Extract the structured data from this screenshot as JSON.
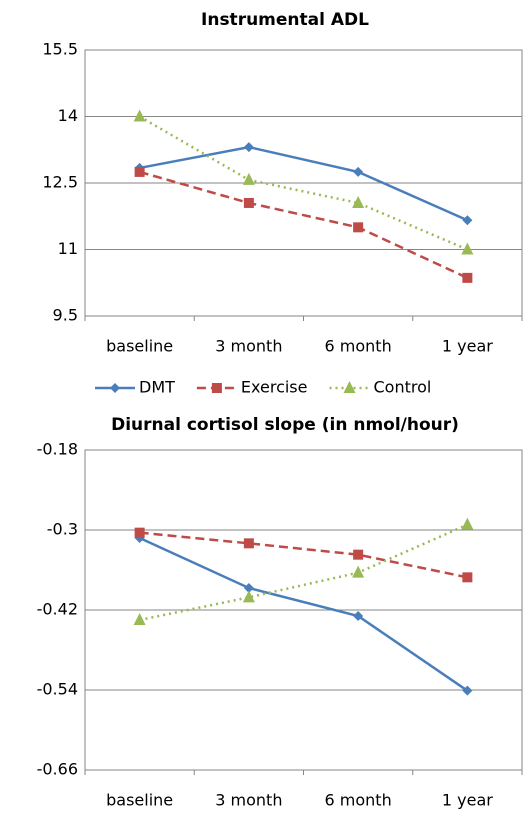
{
  "chart_data": [
    {
      "type": "line",
      "title": "Instrumental ADL",
      "categories": [
        "baseline",
        "3 month",
        "6 month",
        "1 year"
      ],
      "series": [
        {
          "name": "DMT",
          "color": "#4a7ebb",
          "marker": "diamond",
          "line_style": "solid",
          "values": [
            12.84,
            13.31,
            12.75,
            11.66
          ]
        },
        {
          "name": "Exercise",
          "color": "#be4b48",
          "marker": "square",
          "line_style": "dashed",
          "values": [
            12.75,
            12.05,
            11.5,
            10.36
          ]
        },
        {
          "name": "Control",
          "color": "#98b954",
          "marker": "triangle",
          "line_style": "dotted",
          "values": [
            14.0,
            12.57,
            12.05,
            11.0
          ]
        }
      ],
      "ylim": [
        9.5,
        15.5
      ],
      "yticks": [
        9.5,
        11,
        12.5,
        14,
        15.5
      ],
      "grid": true,
      "legend": "bottom"
    },
    {
      "type": "line",
      "title": "Diurnal cortisol slope (in nmol/hour)",
      "categories": [
        "baseline",
        "3 month",
        "6 month",
        "1 year"
      ],
      "series": [
        {
          "name": "DMT",
          "color": "#4a7ebb",
          "marker": "diamond",
          "line_style": "solid",
          "values": [
            -0.312,
            -0.387,
            -0.429,
            -0.541
          ]
        },
        {
          "name": "Exercise",
          "color": "#be4b48",
          "marker": "square",
          "line_style": "dashed",
          "values": [
            -0.304,
            -0.32,
            -0.337,
            -0.371
          ]
        },
        {
          "name": "Control",
          "color": "#98b954",
          "marker": "triangle",
          "line_style": "dotted",
          "values": [
            -0.435,
            -0.401,
            -0.364,
            -0.292
          ]
        }
      ],
      "ylim": [
        -0.66,
        -0.18
      ],
      "yticks": [
        -0.18,
        -0.3,
        -0.42,
        -0.54,
        -0.66
      ],
      "grid": true
    }
  ]
}
